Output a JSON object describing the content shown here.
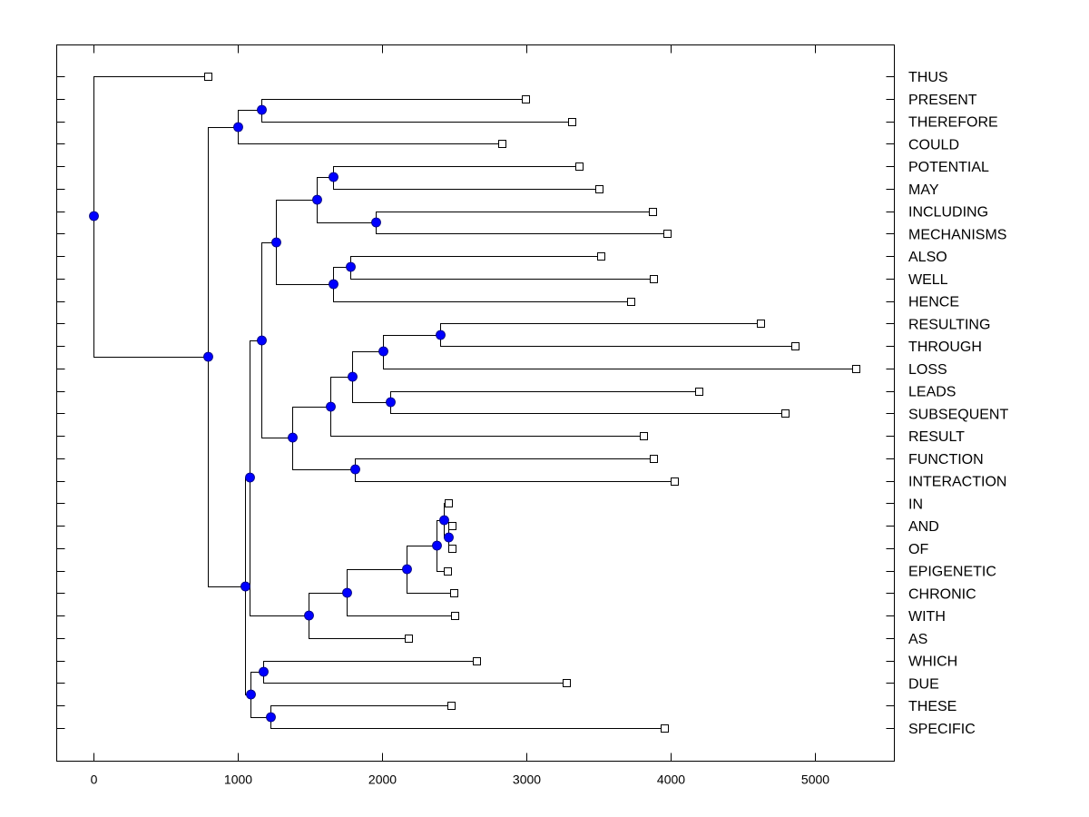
{
  "chart_data": {
    "type": "dendrogram",
    "title": "",
    "xlabel": "",
    "ylabel": "",
    "xlim": [
      -250,
      5550
    ],
    "x_ticks": [
      0,
      1000,
      2000,
      3000,
      4000,
      5000
    ],
    "x_tick_labels": [
      "0",
      "1000",
      "2000",
      "3000",
      "4000",
      "5000"
    ],
    "grid": false,
    "colors": {
      "node": "#0000ff",
      "line": "#000000",
      "leaf_fill": "#ffffff"
    },
    "leaves": [
      {
        "id": "THUS",
        "label": "THUS",
        "x": 790
      },
      {
        "id": "PRESENT",
        "label": "PRESENT",
        "x": 2995
      },
      {
        "id": "THEREFORE",
        "label": "THEREFORE",
        "x": 3315
      },
      {
        "id": "COULD",
        "label": "COULD",
        "x": 2830
      },
      {
        "id": "POTENTIAL",
        "label": "POTENTIAL",
        "x": 3365
      },
      {
        "id": "MAY",
        "label": "MAY",
        "x": 3505
      },
      {
        "id": "INCLUDING",
        "label": "INCLUDING",
        "x": 3875
      },
      {
        "id": "MECHANISMS",
        "label": "MECHANISMS",
        "x": 3975
      },
      {
        "id": "ALSO",
        "label": "ALSO",
        "x": 3515
      },
      {
        "id": "WELL",
        "label": "WELL",
        "x": 3880
      },
      {
        "id": "HENCE",
        "label": "HENCE",
        "x": 3725
      },
      {
        "id": "RESULTING",
        "label": "RESULTING",
        "x": 4620
      },
      {
        "id": "THROUGH",
        "label": "THROUGH",
        "x": 4860
      },
      {
        "id": "LOSS",
        "label": "LOSS",
        "x": 5285
      },
      {
        "id": "LEADS",
        "label": "LEADS",
        "x": 4195
      },
      {
        "id": "SUBSEQUENT",
        "label": "SUBSEQUENT",
        "x": 4790
      },
      {
        "id": "RESULT",
        "label": "RESULT",
        "x": 3810
      },
      {
        "id": "FUNCTION",
        "label": "FUNCTION",
        "x": 3880
      },
      {
        "id": "INTERACTION",
        "label": "INTERACTION",
        "x": 4025
      },
      {
        "id": "IN",
        "label": "IN",
        "x": 2460
      },
      {
        "id": "AND",
        "label": "AND",
        "x": 2485
      },
      {
        "id": "OF",
        "label": "OF",
        "x": 2485
      },
      {
        "id": "EPIGENETIC",
        "label": "EPIGENETIC",
        "x": 2455
      },
      {
        "id": "CHRONIC",
        "label": "CHRONIC",
        "x": 2495
      },
      {
        "id": "WITH",
        "label": "WITH",
        "x": 2505
      },
      {
        "id": "AS",
        "label": "AS",
        "x": 2180
      },
      {
        "id": "WHICH",
        "label": "WHICH",
        "x": 2655
      },
      {
        "id": "DUE",
        "label": "DUE",
        "x": 3275
      },
      {
        "id": "THESE",
        "label": "THESE",
        "x": 2480
      },
      {
        "id": "SPECIFIC",
        "label": "SPECIFIC",
        "x": 3955
      }
    ],
    "nodes": [
      {
        "id": "root",
        "x": 0,
        "children": [
          "THUS",
          "A"
        ]
      },
      {
        "id": "A",
        "x": 790,
        "children": [
          "B",
          "C"
        ]
      },
      {
        "id": "B",
        "x": 1000,
        "children": [
          "B1",
          "COULD"
        ]
      },
      {
        "id": "B1",
        "x": 1165,
        "children": [
          "PRESENT",
          "THEREFORE"
        ]
      },
      {
        "id": "C",
        "x": 1050,
        "children": [
          "D",
          "E"
        ]
      },
      {
        "id": "D",
        "x": 1080,
        "children": [
          "F",
          "G"
        ]
      },
      {
        "id": "F",
        "x": 1165,
        "children": [
          "H",
          "I"
        ]
      },
      {
        "id": "H",
        "x": 1265,
        "children": [
          "J",
          "K"
        ]
      },
      {
        "id": "J",
        "x": 1545,
        "children": [
          "L",
          "M"
        ]
      },
      {
        "id": "L",
        "x": 1660,
        "children": [
          "POTENTIAL",
          "MAY"
        ]
      },
      {
        "id": "M",
        "x": 1955,
        "children": [
          "INCLUDING",
          "MECHANISMS"
        ]
      },
      {
        "id": "K",
        "x": 1660,
        "children": [
          "N",
          "HENCE"
        ]
      },
      {
        "id": "N",
        "x": 1780,
        "children": [
          "ALSO",
          "WELL"
        ]
      },
      {
        "id": "I",
        "x": 1380,
        "children": [
          "O",
          "P"
        ]
      },
      {
        "id": "O",
        "x": 1640,
        "children": [
          "Q",
          "RESULT"
        ]
      },
      {
        "id": "Q",
        "x": 1795,
        "children": [
          "R",
          "S"
        ]
      },
      {
        "id": "R",
        "x": 2005,
        "children": [
          "T",
          "LOSS"
        ]
      },
      {
        "id": "T",
        "x": 2400,
        "children": [
          "RESULTING",
          "THROUGH"
        ]
      },
      {
        "id": "S",
        "x": 2055,
        "children": [
          "LEADS",
          "SUBSEQUENT"
        ]
      },
      {
        "id": "P",
        "x": 1810,
        "children": [
          "FUNCTION",
          "INTERACTION"
        ]
      },
      {
        "id": "G",
        "x": 1490,
        "children": [
          "U",
          "AS"
        ]
      },
      {
        "id": "U",
        "x": 1755,
        "children": [
          "V",
          "WITH"
        ]
      },
      {
        "id": "V",
        "x": 2170,
        "children": [
          "W",
          "CHRONIC"
        ]
      },
      {
        "id": "W",
        "x": 2375,
        "children": [
          "X",
          "EPIGENETIC"
        ]
      },
      {
        "id": "X",
        "x": 2430,
        "children": [
          "IN",
          "Y"
        ]
      },
      {
        "id": "Y",
        "x": 2460,
        "children": [
          "AND",
          "OF"
        ]
      },
      {
        "id": "E",
        "x": 1090,
        "children": [
          "Z",
          "AA"
        ]
      },
      {
        "id": "Z",
        "x": 1175,
        "children": [
          "WHICH",
          "DUE"
        ]
      },
      {
        "id": "AA",
        "x": 1225,
        "children": [
          "THESE",
          "SPECIFIC"
        ]
      }
    ]
  }
}
